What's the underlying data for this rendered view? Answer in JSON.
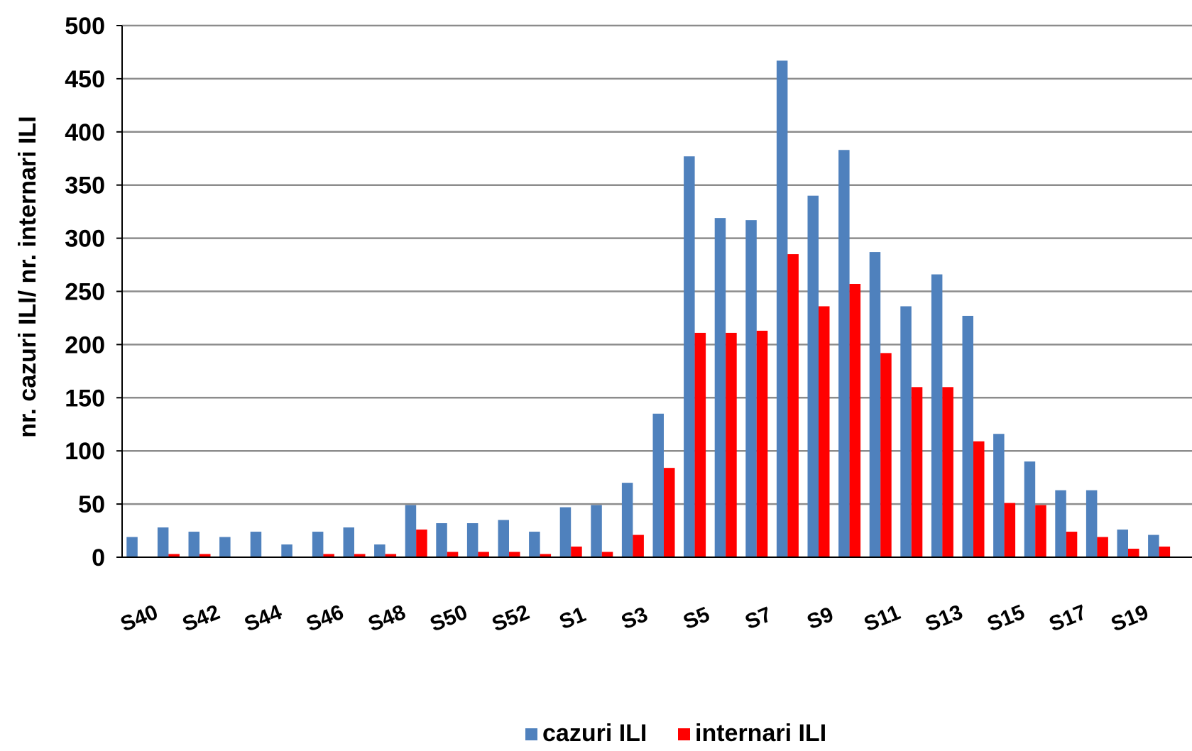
{
  "chart_data": {
    "type": "bar",
    "title": "",
    "xlabel": "",
    "ylabel": "nr. cazuri ILI/ nr. internari ILI",
    "ylim": [
      0,
      500
    ],
    "yticks": [
      0,
      50,
      100,
      150,
      200,
      250,
      300,
      350,
      400,
      450,
      500
    ],
    "grid": true,
    "legend_position": "bottom",
    "categories": [
      "S40",
      "S41",
      "S42",
      "S43",
      "S44",
      "S45",
      "S46",
      "S47",
      "S48",
      "S49",
      "S50",
      "S51",
      "S52",
      "S53",
      "S1",
      "S2",
      "S3",
      "S4",
      "S5",
      "S6",
      "S7",
      "S8",
      "S9",
      "S10",
      "S11",
      "S12",
      "S13",
      "S14",
      "S15",
      "S16",
      "S17",
      "S18",
      "S19",
      "S20"
    ],
    "tick_labels": [
      "S40",
      "S42",
      "S44",
      "S46",
      "S48",
      "S50",
      "S52",
      "S1",
      "S3",
      "S5",
      "S7",
      "S9",
      "S11",
      "S13",
      "S15",
      "S17",
      "S19"
    ],
    "series": [
      {
        "name": "cazuri ILI",
        "color": "#4F81BD",
        "values": [
          19,
          28,
          24,
          19,
          24,
          12,
          24,
          28,
          12,
          49,
          32,
          32,
          35,
          24,
          47,
          49,
          70,
          135,
          377,
          319,
          317,
          467,
          340,
          383,
          287,
          236,
          266,
          227,
          116,
          90,
          63,
          63,
          26,
          21
        ]
      },
      {
        "name": "internari ILI",
        "color": "#FF0000",
        "values": [
          0,
          3,
          3,
          0,
          0,
          0,
          3,
          3,
          3,
          26,
          5,
          5,
          5,
          3,
          10,
          5,
          21,
          84,
          211,
          211,
          213,
          285,
          236,
          257,
          192,
          160,
          160,
          109,
          51,
          49,
          24,
          19,
          8,
          10
        ]
      }
    ]
  }
}
